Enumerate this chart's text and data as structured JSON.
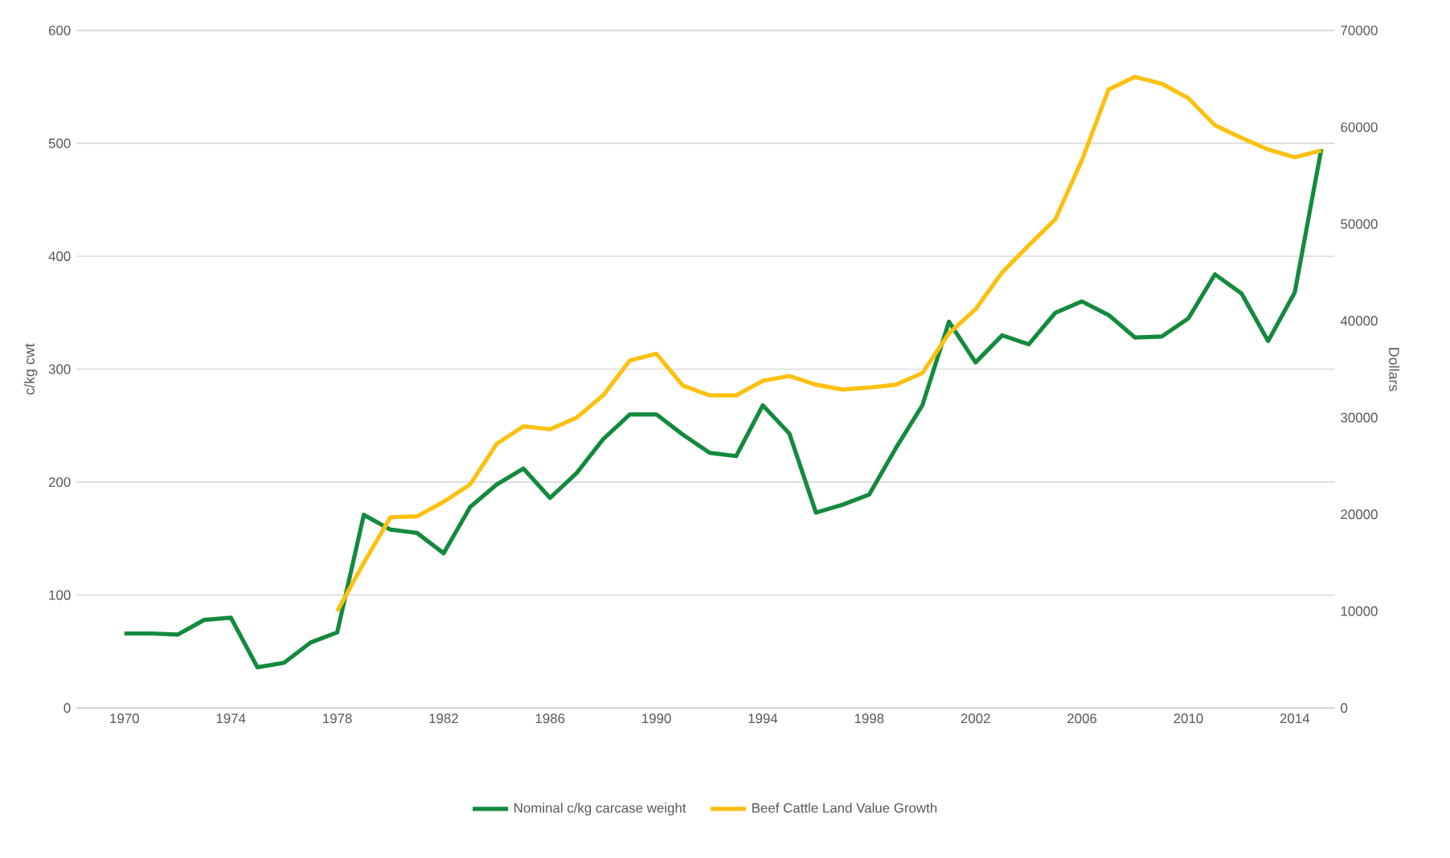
{
  "chart_data": {
    "type": "line",
    "ylabel": "c/kg cwt",
    "y2label": "Dollars",
    "x": [
      1970,
      1971,
      1972,
      1973,
      1974,
      1975,
      1976,
      1977,
      1978,
      1979,
      1980,
      1981,
      1982,
      1983,
      1984,
      1985,
      1986,
      1987,
      1988,
      1989,
      1990,
      1991,
      1992,
      1993,
      1994,
      1995,
      1996,
      1997,
      1998,
      1999,
      2000,
      2001,
      2002,
      2003,
      2004,
      2005,
      2006,
      2007,
      2008,
      2009,
      2010,
      2011,
      2012,
      2013,
      2014,
      2015
    ],
    "xlim": [
      1968.2,
      2015.5
    ],
    "xticks": [
      1970,
      1974,
      1978,
      1982,
      1986,
      1990,
      1994,
      1998,
      2002,
      2006,
      2010,
      2014
    ],
    "ylim": [
      0,
      600
    ],
    "yticks": [
      0,
      100,
      200,
      300,
      400,
      500,
      600
    ],
    "y2lim": [
      0,
      70000
    ],
    "y2ticks": [
      0,
      10000,
      20000,
      30000,
      40000,
      50000,
      60000,
      70000
    ],
    "grid": "y",
    "legend": "bottom",
    "marker": "none",
    "line_style": "solid",
    "series": [
      {
        "name": "Nominal c/kg carcase weight",
        "color": "#138a3e",
        "values": [
          66,
          66,
          65,
          78,
          80,
          36,
          40,
          58,
          67,
          171,
          158,
          155,
          137,
          178,
          198,
          212,
          186,
          208,
          238,
          260,
          260,
          242,
          226,
          223,
          268,
          243,
          173,
          180,
          189,
          230,
          268,
          342,
          306,
          330,
          322,
          350,
          360,
          348,
          328,
          329,
          345,
          384,
          367,
          325,
          368,
          495
        ]
      },
      {
        "name": "Beef Cattle Land Value Growth",
        "color": "#fdc010",
        "axis": "y2",
        "values": [
          null,
          null,
          null,
          null,
          null,
          null,
          null,
          null,
          10000,
          15000,
          19700,
          19800,
          21300,
          23100,
          27300,
          29100,
          28800,
          30000,
          32300,
          35900,
          36600,
          33300,
          32300,
          32300,
          33800,
          34300,
          33400,
          32900,
          33100,
          33400,
          34600,
          38700,
          41200,
          45000,
          47800,
          50500,
          56600,
          63900,
          65200,
          64500,
          63000,
          60200,
          58900,
          57700,
          56900,
          57600
        ]
      }
    ]
  }
}
